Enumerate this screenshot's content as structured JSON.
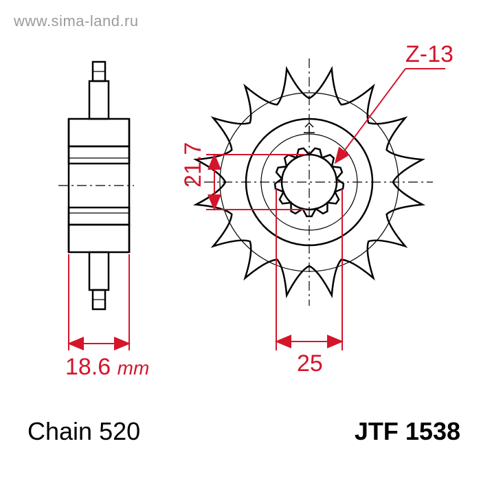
{
  "watermark": "www.sima-land.ru",
  "dimensions": {
    "spline_count_label": "Z-13",
    "bore_diameter": "21.7",
    "hub_diameter": "25",
    "width_value": "18.6",
    "width_unit": "mm"
  },
  "labels": {
    "chain": "Chain 520",
    "part_number": "JTF 1538"
  },
  "style": {
    "dim_color": "#d4152a",
    "part_color": "#000000",
    "background": "#ffffff",
    "watermark_color": "#9b9b9b",
    "dim_fontsize": 34,
    "label_fontsize": 36
  },
  "drawing": {
    "type": "engineering-diagram",
    "views": [
      "side-section",
      "front-face"
    ],
    "sprocket_teeth": 16,
    "spline_teeth": 13
  }
}
